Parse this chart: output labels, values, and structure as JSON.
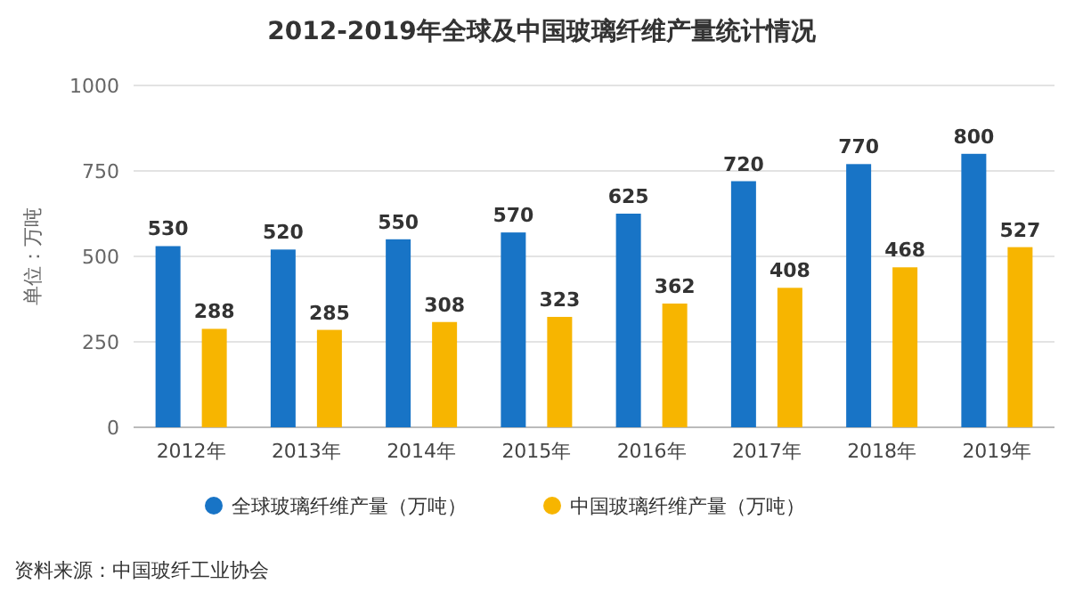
{
  "chart_data": {
    "type": "bar",
    "title": "2012-2019年全球及中国玻璃纤维产量统计情况",
    "ylabel": "单位：万吨",
    "categories": [
      "2012年",
      "2013年",
      "2014年",
      "2015年",
      "2016年",
      "2017年",
      "2018年",
      "2019年"
    ],
    "series": [
      {
        "name": "全球玻璃纤维产量（万吨）",
        "color": "#1874c6",
        "values": [
          530,
          520,
          550,
          570,
          625,
          720,
          770,
          800
        ]
      },
      {
        "name": "中国玻璃纤维产量（万吨）",
        "color": "#f7b500",
        "values": [
          288,
          285,
          308,
          323,
          362,
          408,
          468,
          527
        ]
      }
    ],
    "ylim": [
      0,
      1000
    ],
    "yticks": [
      0,
      250,
      500,
      750,
      1000
    ],
    "grid": "y",
    "legend": "bottom",
    "data_labels": true,
    "annotations": [
      "资料来源：中国玻纤工业协会"
    ]
  }
}
